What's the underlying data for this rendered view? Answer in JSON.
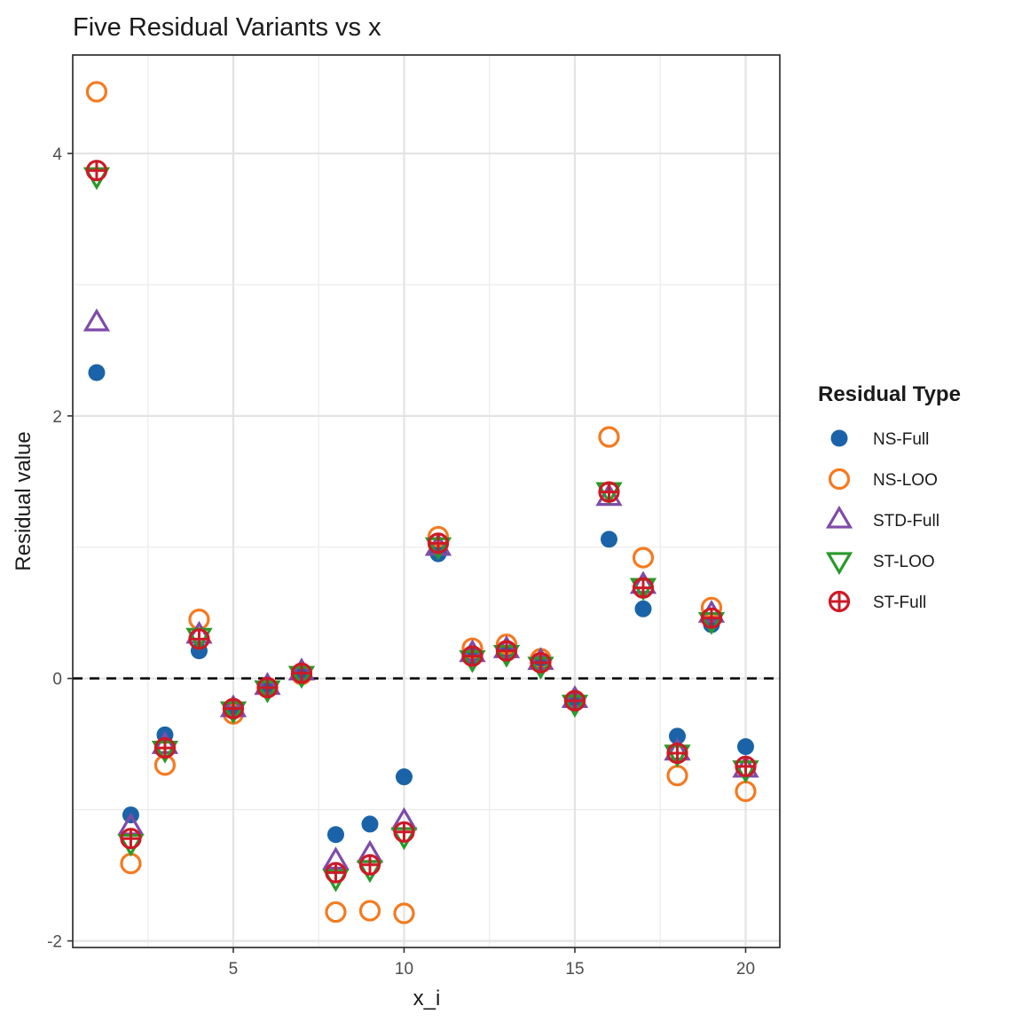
{
  "chart_data": {
    "type": "scatter",
    "title": "Five Residual Variants vs x",
    "xlabel": "x_i",
    "ylabel": "Residual value",
    "xlim": [
      0.3,
      21.0
    ],
    "ylim": [
      -2.05,
      4.75
    ],
    "xticks": [
      5,
      10,
      15,
      20
    ],
    "yticks": [
      -2,
      0,
      2,
      4
    ],
    "xtick_labels": [
      "5",
      "10",
      "15",
      "20"
    ],
    "ytick_labels": [
      "-2",
      "0",
      "2",
      "4"
    ],
    "grid": true,
    "reference_line": {
      "y": 0,
      "style": "dashed"
    },
    "legend": {
      "title": "Residual Type",
      "placement": "right",
      "entries": [
        "NS-Full",
        "NS-LOO",
        "STD-Full",
        "ST-LOO",
        "ST-Full"
      ]
    },
    "x": [
      1,
      2,
      3,
      4,
      5,
      6,
      7,
      8,
      9,
      10,
      11,
      12,
      13,
      14,
      15,
      16,
      17,
      18,
      19,
      20
    ],
    "series": [
      {
        "name": "NS-Full",
        "marker": "filled-circle",
        "color": "#1a63a8",
        "values": [
          2.33,
          -1.04,
          -0.43,
          0.21,
          -0.23,
          -0.07,
          0.03,
          -1.19,
          -1.11,
          -0.75,
          0.95,
          0.17,
          0.19,
          0.11,
          -0.17,
          1.06,
          0.53,
          -0.44,
          0.41,
          -0.52
        ]
      },
      {
        "name": "NS-LOO",
        "marker": "open-circle",
        "color": "#f47a20",
        "values": [
          4.47,
          -1.41,
          -0.66,
          0.45,
          -0.27,
          -0.07,
          0.03,
          -1.78,
          -1.77,
          -1.79,
          1.08,
          0.23,
          0.26,
          0.15,
          -0.17,
          1.84,
          0.92,
          -0.74,
          0.54,
          -0.86
        ]
      },
      {
        "name": "STD-Full",
        "marker": "open-triangle-up",
        "color": "#7f4ba8",
        "values": [
          2.71,
          -1.13,
          -0.51,
          0.33,
          -0.23,
          -0.06,
          0.05,
          -1.39,
          -1.34,
          -1.09,
          1.0,
          0.19,
          0.22,
          0.13,
          -0.16,
          1.38,
          0.71,
          -0.56,
          0.49,
          -0.69
        ]
      },
      {
        "name": "ST-LOO",
        "marker": "open-triangle-down",
        "color": "#289a28",
        "values": [
          3.83,
          -1.25,
          -0.54,
          0.32,
          -0.24,
          -0.08,
          0.03,
          -1.52,
          -1.45,
          -1.2,
          1.01,
          0.15,
          0.19,
          0.1,
          -0.19,
          1.43,
          0.7,
          -0.57,
          0.44,
          -0.69
        ]
      },
      {
        "name": "ST-Full",
        "marker": "circle-plus",
        "color": "#cc1a26",
        "values": [
          3.87,
          -1.22,
          -0.53,
          0.3,
          -0.23,
          -0.07,
          0.04,
          -1.48,
          -1.42,
          -1.17,
          1.03,
          0.17,
          0.21,
          0.12,
          -0.17,
          1.42,
          0.69,
          -0.57,
          0.46,
          -0.67
        ]
      }
    ]
  }
}
